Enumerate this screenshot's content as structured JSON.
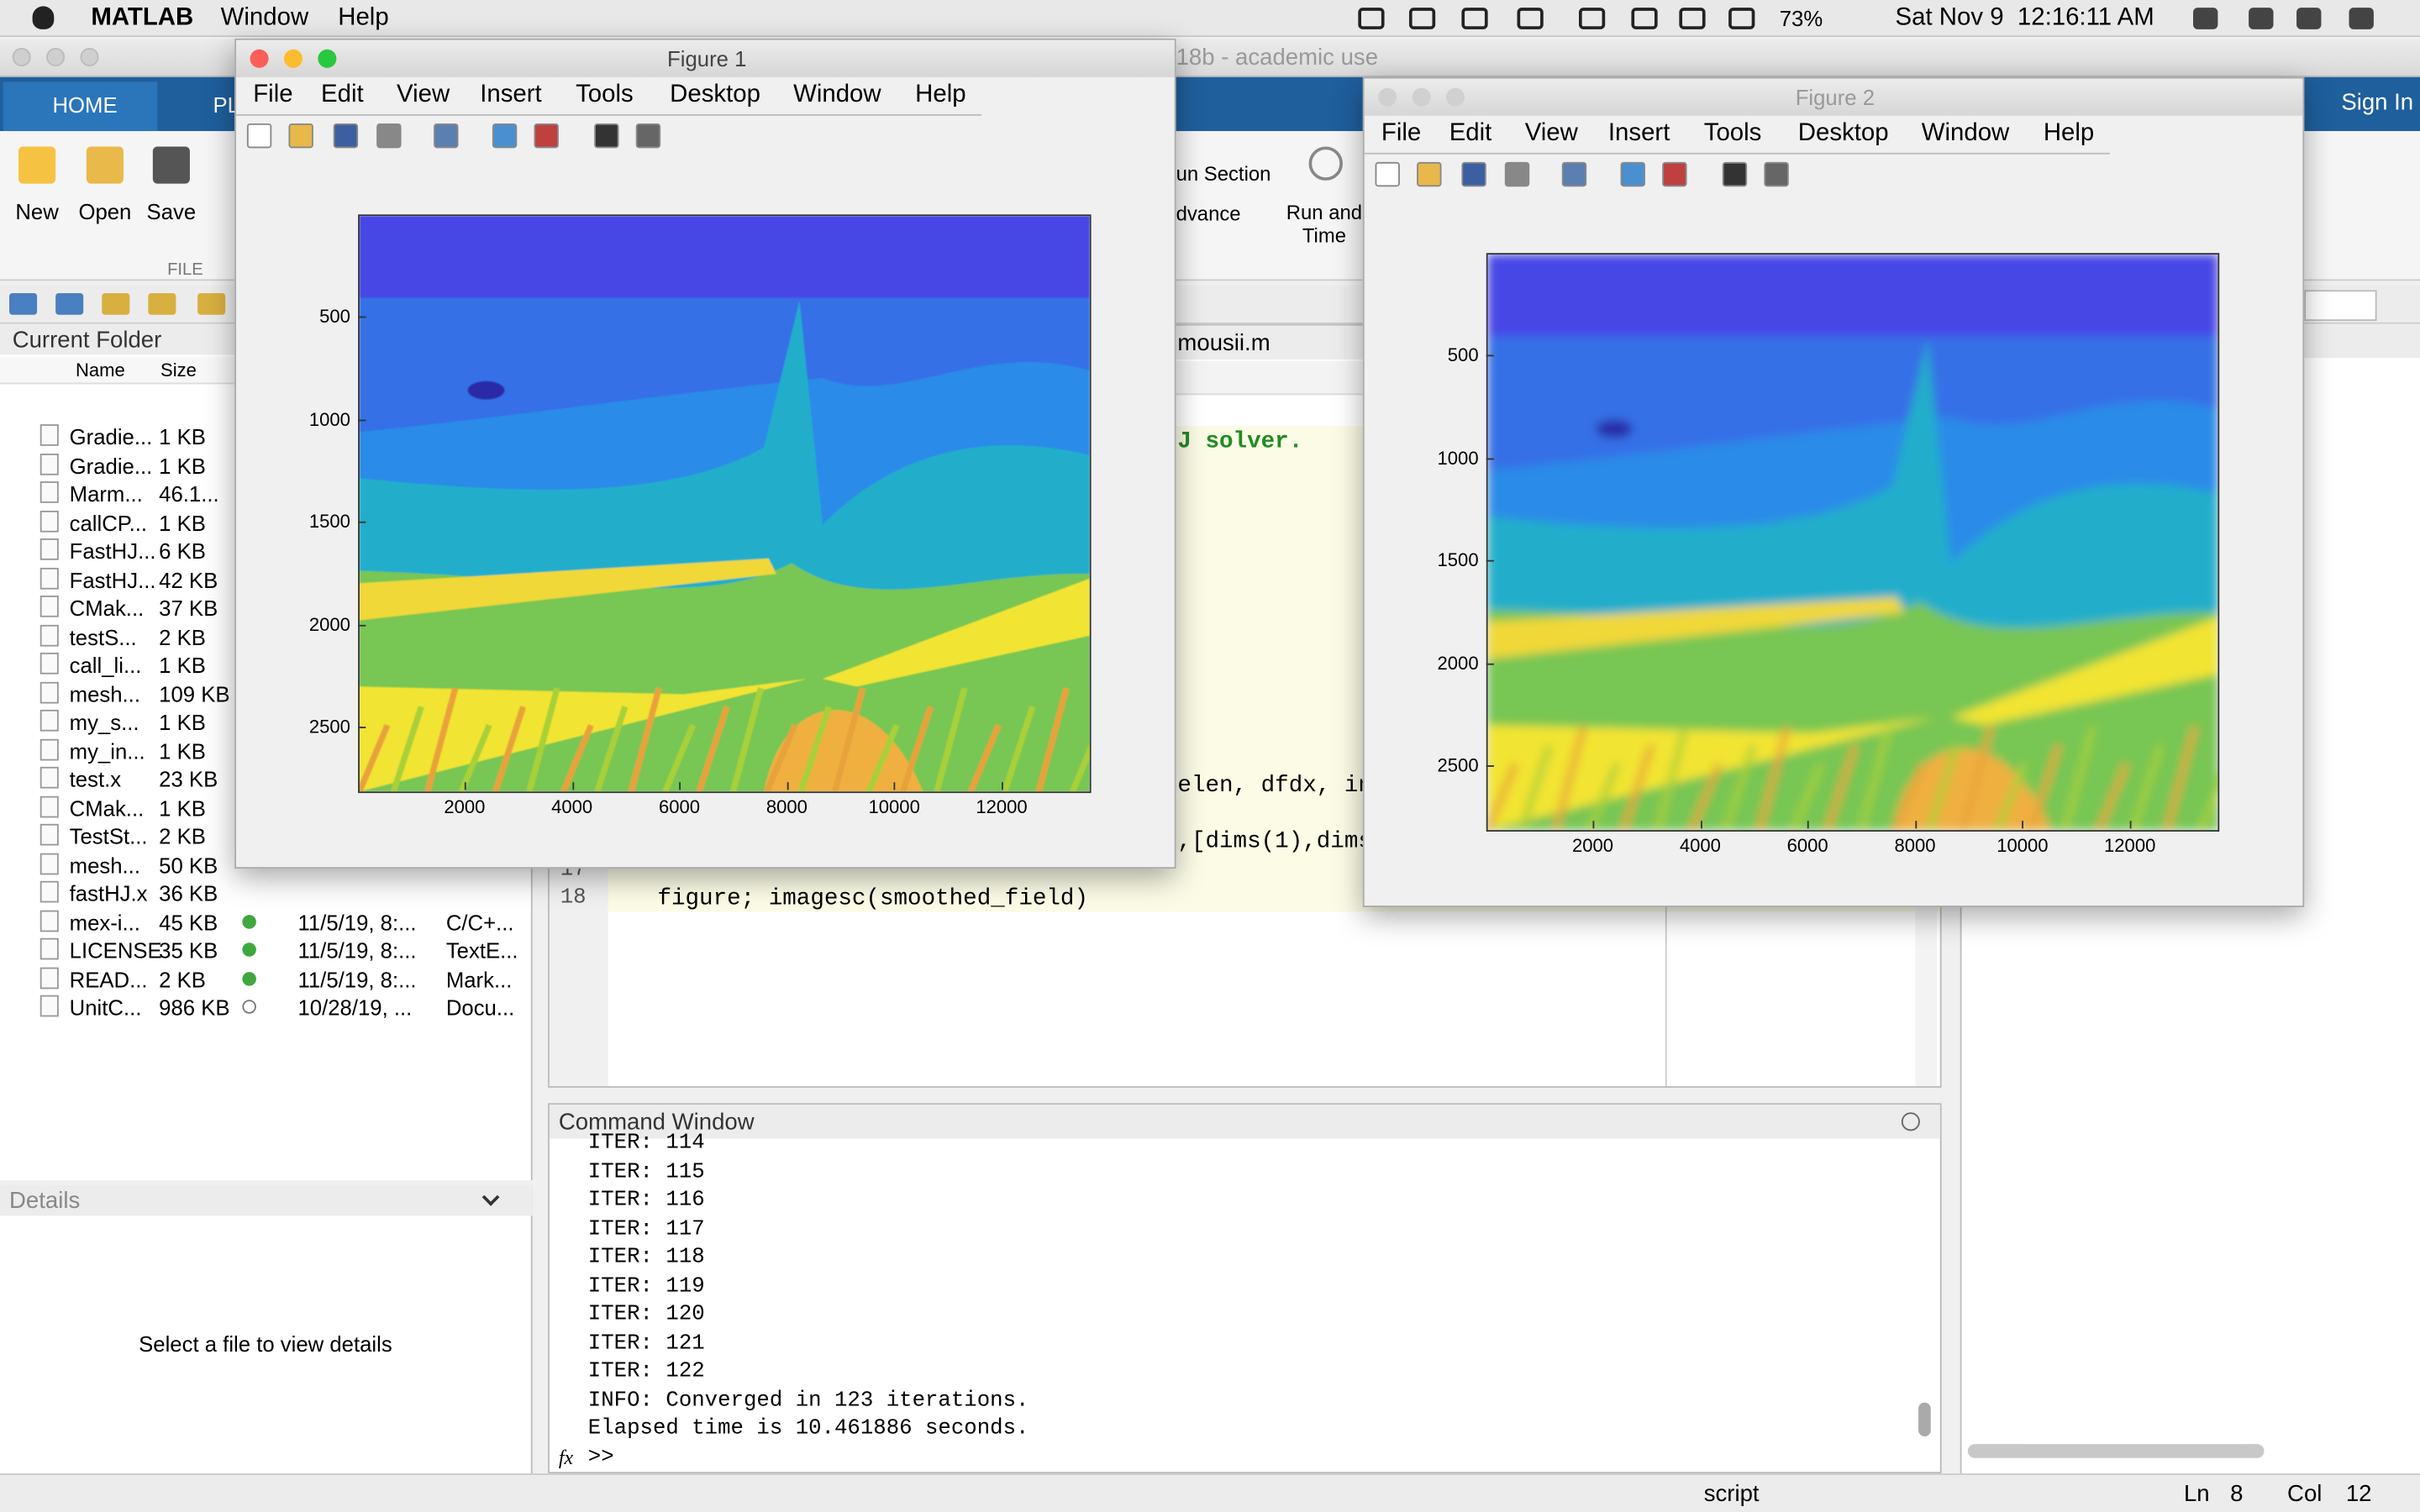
{
  "menubar": {
    "app": "MATLAB",
    "menus": [
      "Window",
      "Help"
    ],
    "battery": "73%",
    "clock": "Sat Nov 9  12:16:11 AM"
  },
  "matlab": {
    "title": "18b - academic use",
    "tabs": [
      "HOME",
      "PL"
    ],
    "sign_in": "Sign In",
    "buttons": [
      "New",
      "Open",
      "Save"
    ],
    "section": "FILE",
    "run_section": "un Section",
    "advance": "dvance",
    "run_and_time": [
      "Run and",
      "Time"
    ]
  },
  "folder": {
    "title": "Current Folder",
    "columns": [
      "Name",
      "Size"
    ],
    "files": [
      [
        "Gradie...",
        "1 KB"
      ],
      [
        "Gradie...",
        "1 KB"
      ],
      [
        "Marm...",
        "46.1..."
      ],
      [
        "callCP...",
        "1 KB"
      ],
      [
        "FastHJ...",
        "6 KB"
      ],
      [
        "FastHJ...",
        "42 KB"
      ],
      [
        "CMak...",
        "37 KB"
      ],
      [
        "testS...",
        "2 KB"
      ],
      [
        "call_li...",
        "1 KB"
      ],
      [
        "mesh...",
        "109 KB"
      ],
      [
        "my_s...",
        "1 KB"
      ],
      [
        "my_in...",
        "1 KB"
      ],
      [
        "test.x",
        "23 KB"
      ],
      [
        "CMak...",
        "1 KB"
      ],
      [
        "TestSt...",
        "2 KB"
      ],
      [
        "mesh...",
        "50 KB"
      ],
      [
        "fastHJ.x",
        "36 KB"
      ],
      [
        "mex-i...",
        "45 KB",
        "11/5/19, 8:...",
        "C/C+..."
      ],
      [
        "LICENSE",
        "35 KB",
        "11/5/19, 8:...",
        "TextE..."
      ],
      [
        "READ...",
        "2 KB",
        "11/5/19, 8:...",
        "Mark..."
      ],
      [
        "UnitC...",
        "986 KB",
        "10/28/19, ...",
        "Docu..."
      ]
    ]
  },
  "details": {
    "title": "Details",
    "message": "Select a file to view details"
  },
  "editor": {
    "tab": "mousii.m",
    "comment": "J solver.",
    "fragments": [
      "elen, dfdx, int",
      ",[dims(1),dims"
    ],
    "line_numbers": [
      "17",
      "18"
    ],
    "line_18": "figure; imagesc(smoothed_field)"
  },
  "command_window": {
    "title": "Command Window",
    "lines": [
      "ITER: 114",
      "ITER: 115",
      "ITER: 116",
      "ITER: 117",
      "ITER: 118",
      "ITER: 119",
      "ITER: 120",
      "ITER: 121",
      "ITER: 122",
      "INFO: Converged in 123 iterations.",
      "Elapsed time is 10.461886 seconds."
    ],
    "fx": "fx",
    "prompt": ">>"
  },
  "status": {
    "mode": "script",
    "ln_label": "Ln",
    "ln": 8,
    "col_label": "Col",
    "col": 12
  },
  "figures": [
    {
      "title": "Figure 1",
      "menus": [
        "File",
        "Edit",
        "View",
        "Insert",
        "Tools",
        "Desktop",
        "Window",
        "Help"
      ],
      "yticks": [
        500,
        1000,
        1500,
        2000,
        2500
      ],
      "xticks": [
        2000,
        4000,
        6000,
        8000,
        10000,
        12000
      ]
    },
    {
      "title": "Figure 2",
      "menus": [
        "File",
        "Edit",
        "View",
        "Insert",
        "Tools",
        "Desktop",
        "Window",
        "Help"
      ],
      "yticks": [
        500,
        1000,
        1500,
        2000,
        2500
      ],
      "xticks": [
        2000,
        4000,
        6000,
        8000,
        10000,
        12000
      ]
    }
  ]
}
